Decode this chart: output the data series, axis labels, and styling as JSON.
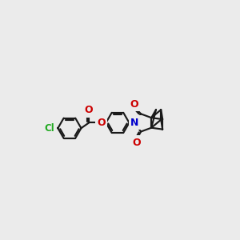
{
  "bg": "#ebebeb",
  "bc": "#1a1a1a",
  "cl_color": "#22aa22",
  "o_color": "#cc0000",
  "n_color": "#0000cc",
  "lw": 1.55,
  "figsize": [
    3.0,
    3.0
  ],
  "dpi": 100,
  "xlim": [
    -1,
    11
  ],
  "ylim": [
    1.5,
    8.5
  ]
}
